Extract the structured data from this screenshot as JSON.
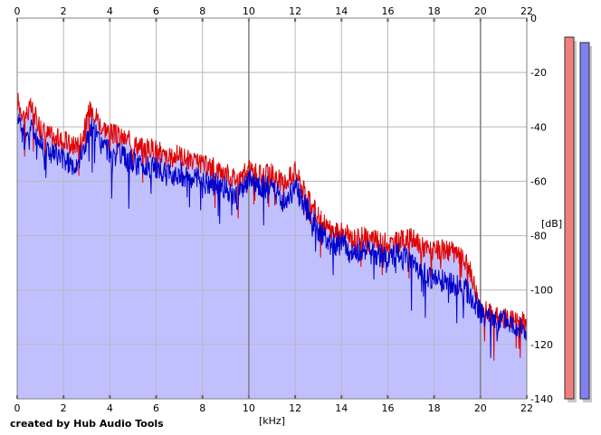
{
  "credit": "created by Hub Audio Tools",
  "colors": {
    "fill": "#c0c0ff",
    "left_channel": "#e00000",
    "right_channel": "#0000c8",
    "grid": "#b8b8b8",
    "meter_left": "#f08080",
    "meter_right": "#8080f0"
  },
  "chart_data": {
    "type": "line",
    "xlabel": "[kHz]",
    "ylabel": "[dB]",
    "xlim": [
      0,
      22
    ],
    "ylim": [
      -140,
      0
    ],
    "x_ticks": [
      "0",
      "2",
      "4",
      "6",
      "8",
      "10",
      "12",
      "14",
      "16",
      "18",
      "20",
      "22"
    ],
    "y_ticks": [
      "0",
      "-20",
      "-40",
      "-60",
      "-80",
      "-100",
      "-120",
      "-140"
    ],
    "grid": true,
    "series": [
      {
        "color": "#e00000",
        "x": [
          0,
          0.3,
          0.6,
          0.9,
          1.2,
          1.6,
          2,
          2.4,
          2.8,
          3.2,
          3.6,
          4,
          4.5,
          5,
          5.5,
          6,
          6.5,
          7,
          7.5,
          8,
          8.5,
          9,
          9.5,
          10,
          10.5,
          11,
          11.5,
          12,
          12.5,
          13,
          13.5,
          14,
          14.5,
          15,
          15.5,
          16,
          16.5,
          17,
          17.5,
          18,
          18.5,
          19,
          19.5,
          20,
          20.5,
          21,
          21.5,
          22
        ],
        "y": [
          -30,
          -36,
          -33,
          -38,
          -42,
          -44,
          -45,
          -47,
          -44,
          -32,
          -39,
          -42,
          -44,
          -46,
          -48,
          -48,
          -52,
          -50,
          -53,
          -54,
          -55,
          -57,
          -59,
          -56,
          -58,
          -57,
          -61,
          -56,
          -66,
          -73,
          -78,
          -79,
          -81,
          -80,
          -82,
          -83,
          -82,
          -81,
          -84,
          -86,
          -85,
          -87,
          -91,
          -106,
          -109,
          -110,
          -111,
          -112
        ]
      },
      {
        "color": "#0000c8",
        "x": [
          0,
          0.3,
          0.6,
          0.9,
          1.2,
          1.6,
          2,
          2.4,
          2.8,
          3.2,
          3.6,
          4,
          4.5,
          5,
          5.5,
          6,
          6.5,
          7,
          7.5,
          8,
          8.5,
          9,
          9.5,
          10,
          10.5,
          11,
          11.5,
          12,
          12.5,
          13,
          13.5,
          14,
          14.5,
          15,
          15.5,
          16,
          16.5,
          17,
          17.5,
          18,
          18.5,
          19,
          19.5,
          20,
          20.5,
          21,
          21.5,
          22
        ],
        "y": [
          -34,
          -44,
          -40,
          -45,
          -48,
          -50,
          -52,
          -54,
          -50,
          -40,
          -46,
          -49,
          -51,
          -53,
          -55,
          -55,
          -58,
          -57,
          -59,
          -60,
          -61,
          -63,
          -66,
          -60,
          -62,
          -62,
          -68,
          -62,
          -70,
          -78,
          -83,
          -83,
          -86,
          -85,
          -87,
          -88,
          -87,
          -90,
          -94,
          -96,
          -97,
          -98,
          -101,
          -108,
          -112,
          -111,
          -113,
          -116
        ]
      }
    ],
    "meters": [
      {
        "color": "#f08080",
        "level": -7
      },
      {
        "color": "#8080f0",
        "level": -9
      }
    ]
  }
}
